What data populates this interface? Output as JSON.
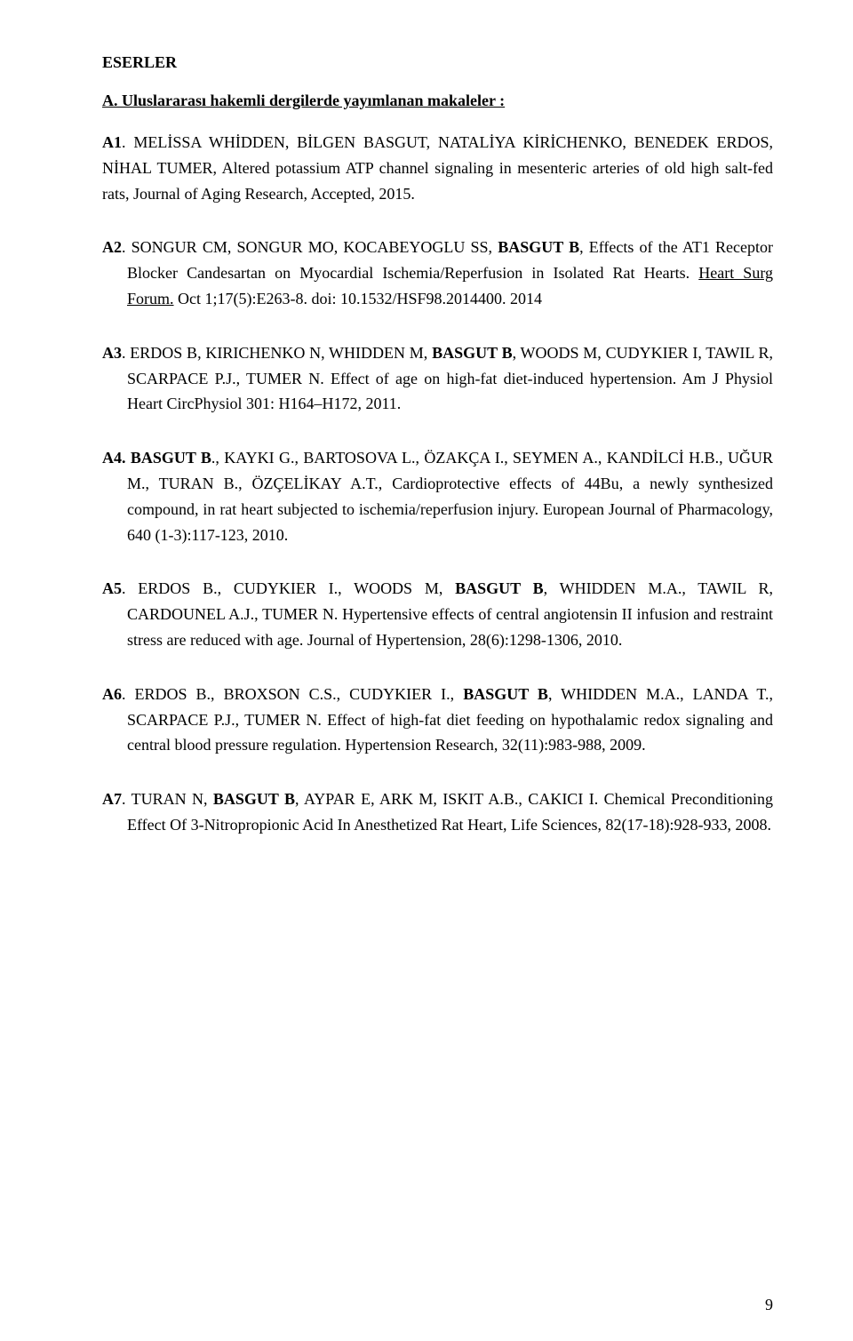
{
  "section_title": "ESERLER",
  "subsection_title": "A. Uluslararası hakemli dergilerde yayımlanan makaleler :",
  "entries": {
    "a1": {
      "label": "A1",
      "text_before": ". MELİSSA WHİDDEN, BİLGEN BASGUT, NATALİYA KİRİCHENKO, BENEDEK ERDOS, NİHAL TUMER, Altered potassium ATP channel signaling in mesenteric arteries of old high salt-fed rats, Journal of Aging Research, Accepted, 2015."
    },
    "a2": {
      "label": "A2",
      "text_before": ". SONGUR CM, SONGUR MO, KOCABEYOGLU SS, ",
      "bold1": "BASGUT B",
      "text_mid": ", Effects of the AT1 Receptor Blocker Candesartan on Myocardial Ischemia/Reperfusion in Isolated Rat Hearts. ",
      "underline": "Heart Surg Forum.",
      "text_after": " Oct 1;17(5):E263-8. doi: 10.1532/HSF98.2014400. 2014"
    },
    "a3": {
      "label": "A3",
      "text_before": ".   ERDOS B, KIRICHENKO N, WHIDDEN M, ",
      "bold1": "BASGUT B",
      "text_after": ", WOODS M, CUDYKIER I, TAWIL R, SCARPACE P.J., TUMER N. Effect of age on high-fat diet-induced hypertension. Am J Physiol Heart CircPhysiol 301: H164–H172, 2011."
    },
    "a4": {
      "label": "A4",
      "bold1": ". BASGUT  B",
      "text_after": "., KAYKI G., BARTOSOVA L., ÖZAKÇA I., SEYMEN A., KANDİLCİ H.B., UĞUR M., TURAN B., ÖZÇELİKAY A.T., Cardioprotective effects of 44Bu, a newly  synthesized compound, in rat heart subjected to ischemia/reperfusion injury. European Journal of Pharmacology, 640 (1-3):117-123, 2010."
    },
    "a5": {
      "label": "A5",
      "text_before": ". ERDOS B., CUDYKIER I., WOODS M, ",
      "bold1": "BASGUT B",
      "text_after": ", WHIDDEN M.A., TAWIL R, CARDOUNEL A.J., TUMER N. Hypertensive effects of central angiotensin II infusion and restraint stress are reduced with age. Journal of Hypertension, 28(6):1298-1306, 2010."
    },
    "a6": {
      "label": "A6",
      "text_before": ". ERDOS B., BROXSON C.S., CUDYKIER I., ",
      "bold1": "BASGUT B",
      "text_after": ", WHIDDEN M.A., LANDA T., SCARPACE P.J., TUMER N. Effect of high-fat diet feeding on hypothalamic redox signaling and central blood pressure regulation. Hypertension Research, 32(11):983-988, 2009."
    },
    "a7": {
      "label": "A7",
      "text_before": ". TURAN N, ",
      "bold1": "BASGUT B",
      "text_after": ", AYPAR E, ARK M, ISKIT A.B., CAKICI I. Chemical Preconditioning Effect Of 3-Nitropropionic Acid In Anesthetized Rat Heart, Life Sciences, 82(17-18):928-933, 2008."
    }
  },
  "page_number": "9"
}
